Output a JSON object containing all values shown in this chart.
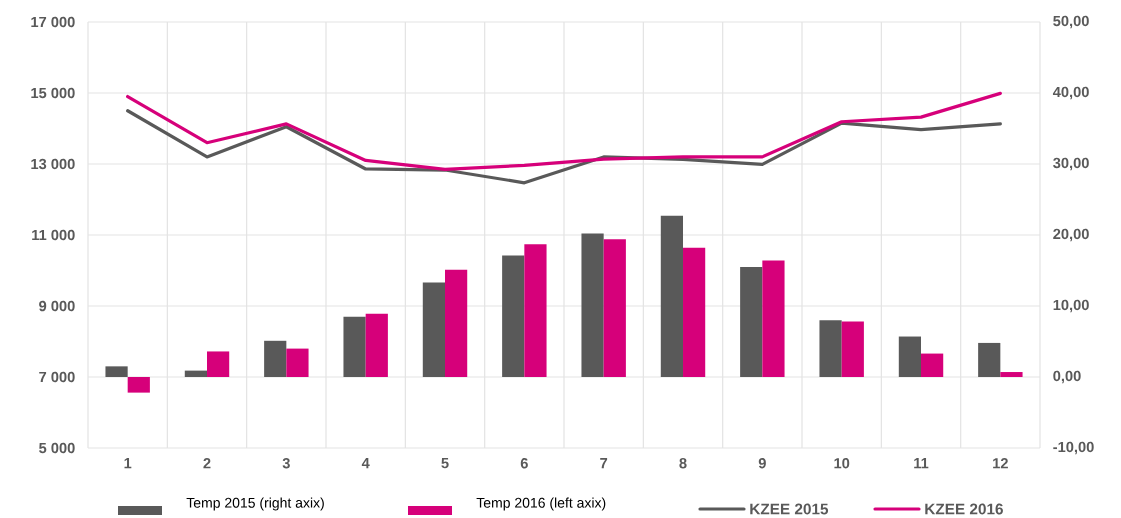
{
  "chart_data": {
    "type": "bar",
    "categories": [
      "1",
      "2",
      "3",
      "4",
      "5",
      "6",
      "7",
      "8",
      "9",
      "10",
      "11",
      "12"
    ],
    "series": [
      {
        "name": "Temp 2015 (right axix)",
        "axis": "y2",
        "color": "#595959",
        "values": [
          1.5,
          0.9,
          5.1,
          8.5,
          13.3,
          17.1,
          20.2,
          22.7,
          15.5,
          8.0,
          5.7,
          4.8
        ]
      },
      {
        "name": "Temp 2016 (left axix)",
        "axis": "y2",
        "color": "#d6007a",
        "values": [
          -2.2,
          3.6,
          4.0,
          8.9,
          15.1,
          18.7,
          19.4,
          18.2,
          16.4,
          7.8,
          3.3,
          0.7
        ]
      },
      {
        "name": "KZEE 2015",
        "type": "line",
        "color": "#595959",
        "values": [
          14500,
          13200,
          14050,
          12860,
          12830,
          12470,
          13200,
          13130,
          12990,
          14150,
          13970,
          14130
        ]
      },
      {
        "name": "KZEE 2016",
        "type": "line",
        "color": "#d6007a",
        "values": [
          14900,
          13600,
          14130,
          13100,
          12850,
          12960,
          13140,
          13200,
          13200,
          14190,
          14320,
          14990
        ]
      }
    ],
    "ylim": [
      5000,
      17000
    ],
    "yticks": [
      {
        "value": 5000,
        "label": "5 000"
      },
      {
        "value": 7000,
        "label": "7 000"
      },
      {
        "value": 9000,
        "label": "9 000"
      },
      {
        "value": 11000,
        "label": "11 000"
      },
      {
        "value": 13000,
        "label": "13 000"
      },
      {
        "value": 15000,
        "label": "15 000"
      },
      {
        "value": 17000,
        "label": "17 000"
      }
    ],
    "y2lim": [
      -10,
      50
    ],
    "y2ticks": [
      {
        "value": -10,
        "label": "-10,00"
      },
      {
        "value": 0,
        "label": "0,00"
      },
      {
        "value": 10,
        "label": "10,00"
      },
      {
        "value": 20,
        "label": "20,00"
      },
      {
        "value": 30,
        "label": "30,00"
      },
      {
        "value": 40,
        "label": "40,00"
      },
      {
        "value": 50,
        "label": "50,00"
      }
    ],
    "grid": true,
    "legend": "bottom",
    "line_style": "solid",
    "marker": "none"
  }
}
